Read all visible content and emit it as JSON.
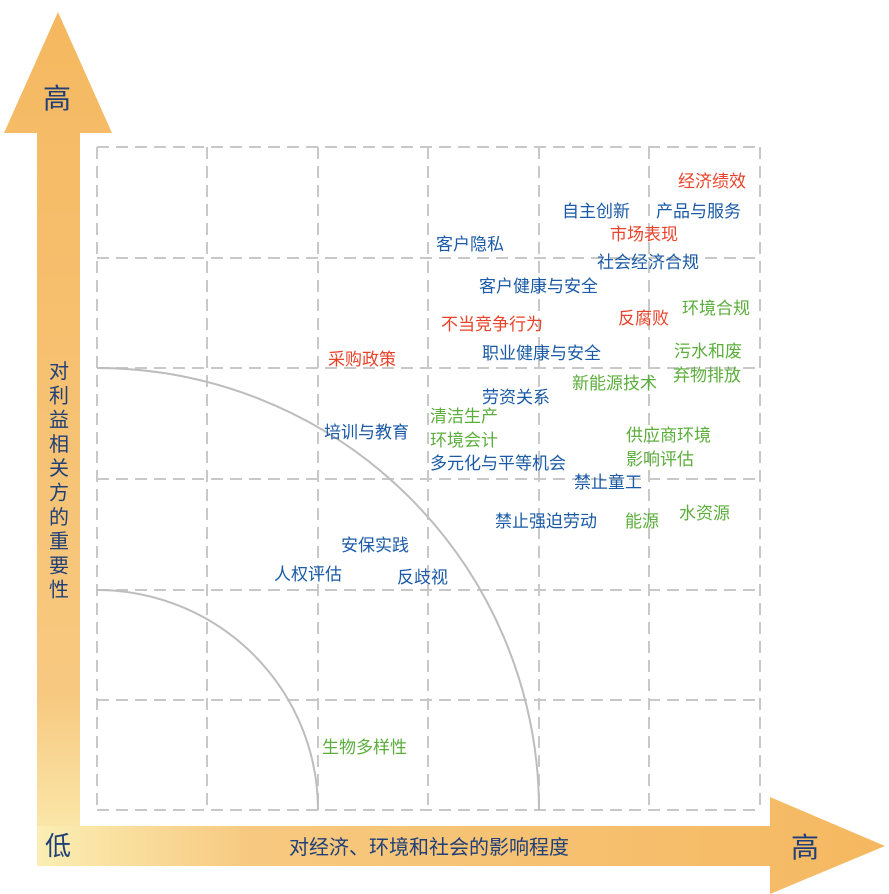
{
  "axes": {
    "y_high": "高",
    "y_label": "对利益相关方的重要性",
    "origin_low": "低",
    "x_label": "对经济、环境和社会的影响程度",
    "x_high": "高"
  },
  "colors": {
    "economic": "#e8432a",
    "social": "#1a5aa6",
    "environmental": "#5cae3c",
    "arrow": "#f5b860",
    "grid": "#c8c8c8",
    "arc": "#bdbdbd",
    "axis_text": "#1f3f78"
  },
  "topics": [
    {
      "id": "t1",
      "text": "经济绩效",
      "category": "economic"
    },
    {
      "id": "t2",
      "text": "自主创新",
      "category": "social"
    },
    {
      "id": "t3",
      "text": "产品与服务",
      "category": "social"
    },
    {
      "id": "t4",
      "text": "市场表现",
      "category": "economic"
    },
    {
      "id": "t5",
      "text": "客户隐私",
      "category": "social"
    },
    {
      "id": "t6",
      "text": "社会经济合规",
      "category": "social"
    },
    {
      "id": "t7",
      "text": "客户健康与安全",
      "category": "social"
    },
    {
      "id": "t8",
      "text": "环境合规",
      "category": "environmental"
    },
    {
      "id": "t9",
      "text": "反腐败",
      "category": "economic"
    },
    {
      "id": "t10",
      "text": "不当竞争行为",
      "category": "economic"
    },
    {
      "id": "t11",
      "text": "采购政策",
      "category": "economic"
    },
    {
      "id": "t12",
      "text": "职业健康与安全",
      "category": "social"
    },
    {
      "id": "t13",
      "text": "污水和废",
      "category": "environmental"
    },
    {
      "id": "t14",
      "text": "弃物排放",
      "category": "environmental"
    },
    {
      "id": "t15",
      "text": "新能源技术",
      "category": "environmental"
    },
    {
      "id": "t16",
      "text": "劳资关系",
      "category": "social"
    },
    {
      "id": "t17",
      "text": "清洁生产",
      "category": "environmental"
    },
    {
      "id": "t18",
      "text": "培训与教育",
      "category": "social"
    },
    {
      "id": "t19",
      "text": "环境会计",
      "category": "environmental"
    },
    {
      "id": "t20",
      "text": "供应商环境",
      "category": "environmental"
    },
    {
      "id": "t21",
      "text": "影响评估",
      "category": "environmental"
    },
    {
      "id": "t22",
      "text": "多元化与平等机会",
      "category": "social"
    },
    {
      "id": "t23",
      "text": "禁止童工",
      "category": "social"
    },
    {
      "id": "t24",
      "text": "禁止强迫劳动",
      "category": "social"
    },
    {
      "id": "t25",
      "text": "能源",
      "category": "environmental"
    },
    {
      "id": "t26",
      "text": "水资源",
      "category": "environmental"
    },
    {
      "id": "t27",
      "text": "安保实践",
      "category": "social"
    },
    {
      "id": "t28",
      "text": "人权评估",
      "category": "social"
    },
    {
      "id": "t29",
      "text": "反歧视",
      "category": "social"
    },
    {
      "id": "t30",
      "text": "生物多样性",
      "category": "environmental"
    }
  ]
}
